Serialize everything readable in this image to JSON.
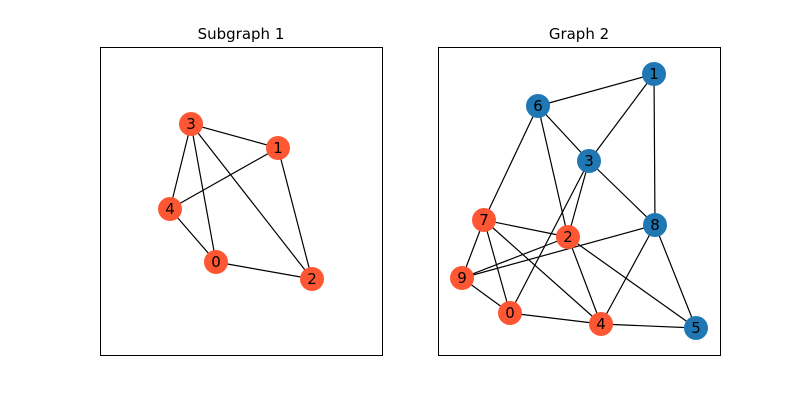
{
  "colors": {
    "highlight": "#ff5733",
    "default": "#1f77b4",
    "edge": "#000000"
  },
  "panels": [
    {
      "title": "Subgraph 1",
      "nodes": [
        {
          "id": "3",
          "color": "highlight"
        },
        {
          "id": "1",
          "color": "highlight"
        },
        {
          "id": "4",
          "color": "highlight"
        },
        {
          "id": "0",
          "color": "highlight"
        },
        {
          "id": "2",
          "color": "highlight"
        }
      ],
      "edges": [
        [
          "3",
          "1"
        ],
        [
          "3",
          "4"
        ],
        [
          "3",
          "0"
        ],
        [
          "3",
          "2"
        ],
        [
          "1",
          "4"
        ],
        [
          "1",
          "2"
        ],
        [
          "4",
          "0"
        ],
        [
          "0",
          "2"
        ]
      ]
    },
    {
      "title": "Graph 2",
      "nodes": [
        {
          "id": "1",
          "color": "default"
        },
        {
          "id": "6",
          "color": "default"
        },
        {
          "id": "3",
          "color": "default"
        },
        {
          "id": "8",
          "color": "default"
        },
        {
          "id": "5",
          "color": "default"
        },
        {
          "id": "7",
          "color": "highlight"
        },
        {
          "id": "2",
          "color": "highlight"
        },
        {
          "id": "9",
          "color": "highlight"
        },
        {
          "id": "0",
          "color": "highlight"
        },
        {
          "id": "4",
          "color": "highlight"
        }
      ],
      "edges": [
        [
          "6",
          "1"
        ],
        [
          "1",
          "3"
        ],
        [
          "1",
          "8"
        ],
        [
          "6",
          "3"
        ],
        [
          "6",
          "7"
        ],
        [
          "6",
          "2"
        ],
        [
          "3",
          "8"
        ],
        [
          "3",
          "2"
        ],
        [
          "3",
          "0"
        ],
        [
          "8",
          "9"
        ],
        [
          "8",
          "4"
        ],
        [
          "8",
          "5"
        ],
        [
          "7",
          "2"
        ],
        [
          "7",
          "9"
        ],
        [
          "7",
          "0"
        ],
        [
          "7",
          "4"
        ],
        [
          "2",
          "9"
        ],
        [
          "2",
          "4"
        ],
        [
          "2",
          "5"
        ],
        [
          "9",
          "0"
        ],
        [
          "0",
          "4"
        ],
        [
          "4",
          "5"
        ]
      ]
    }
  ]
}
